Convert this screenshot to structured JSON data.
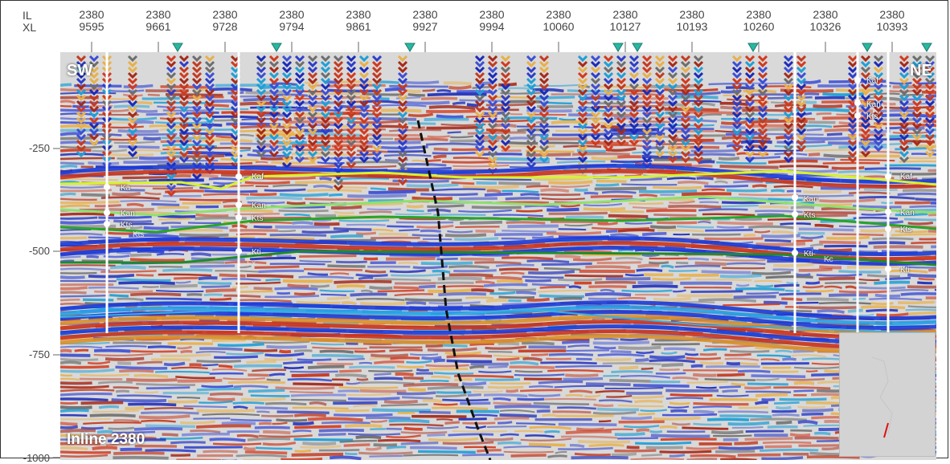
{
  "axis": {
    "il_label": "IL",
    "xl_label": "XL",
    "columns": [
      {
        "il": "2380",
        "xl": "9595"
      },
      {
        "il": "2380",
        "xl": "9661"
      },
      {
        "il": "2380",
        "xl": "9728"
      },
      {
        "il": "2380",
        "xl": "9794"
      },
      {
        "il": "2380",
        "xl": "9861"
      },
      {
        "il": "2380",
        "xl": "9927"
      },
      {
        "il": "2380",
        "xl": "9994"
      },
      {
        "il": "2380",
        "xl": "10060"
      },
      {
        "il": "2380",
        "xl": "10127"
      },
      {
        "il": "2380",
        "xl": "10193"
      },
      {
        "il": "2380",
        "xl": "10260"
      },
      {
        "il": "2380",
        "xl": "10326"
      },
      {
        "il": "2380",
        "xl": "10393"
      }
    ]
  },
  "y_axis": {
    "ticks": [
      "-250",
      "-500",
      "-750",
      "-1000"
    ]
  },
  "section": {
    "left_label": "SW",
    "right_label": "NE",
    "title": "Inline 2380"
  },
  "wells": [
    {
      "markers": [
        "Ka",
        "Kan",
        "Kts"
      ],
      "extra": "Kts"
    },
    {
      "markers": [
        "Kaf",
        "Kan",
        "Kts",
        "Kti"
      ],
      "extra": "Fx"
    },
    {
      "markers": [
        "Kan",
        "Kts",
        "Kti"
      ],
      "extra": "Kc"
    },
    {
      "markers": [
        "Kaf",
        "Kan",
        "Kts",
        "Kti"
      ]
    },
    {
      "markers": [
        "Kaf",
        "Kan",
        "Kts"
      ]
    }
  ],
  "colors": {
    "horizon_yellow": "#d7f22c",
    "horizon_lightgreen": "#8fe06c",
    "horizon_green": "#27a528",
    "horizon_darkgreen": "#1f8a2a",
    "horizon_blue": "#3ab0e0",
    "triangle": "#2ab7a0",
    "fault": "#111111",
    "inset_line": "#e01010"
  }
}
